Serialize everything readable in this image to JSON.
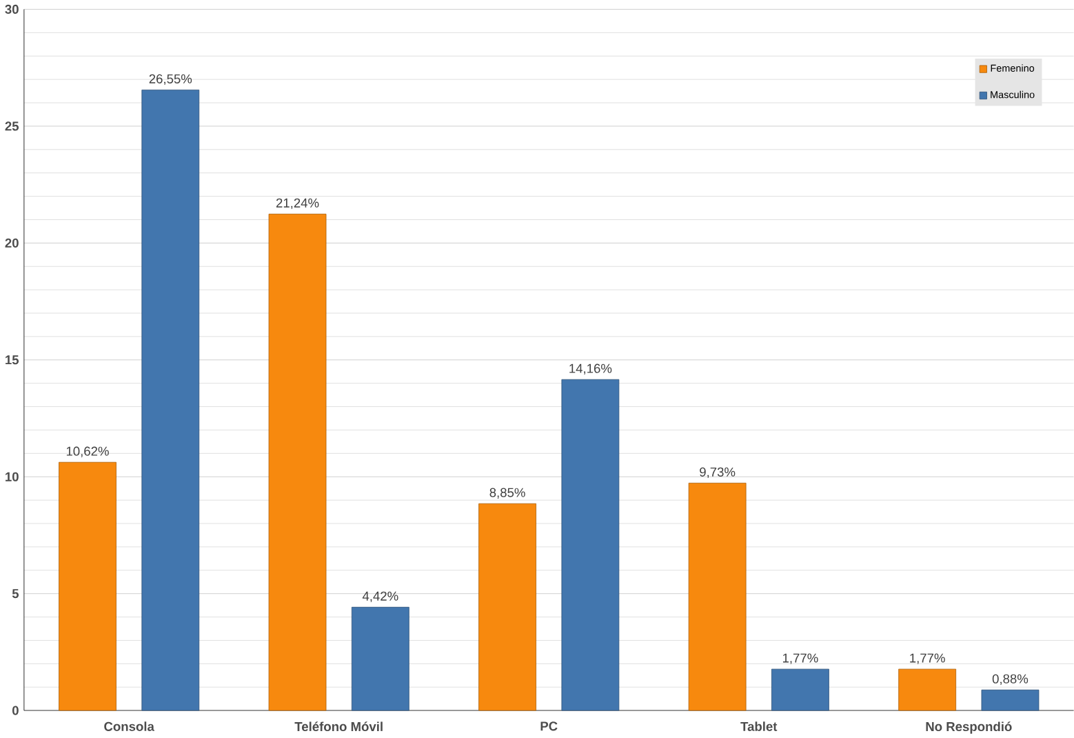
{
  "chart_data": {
    "type": "bar",
    "categories": [
      "Consola",
      "Teléfono Móvil",
      "PC",
      "Tablet",
      "No Respondió"
    ],
    "series": [
      {
        "name": "Femenino",
        "color": "#f7890e",
        "values": [
          10.62,
          21.24,
          8.85,
          9.73,
          1.77
        ],
        "value_labels": [
          "10,62%",
          "21,24%",
          "8,85%",
          "9,73%",
          "1,77%"
        ]
      },
      {
        "name": "Masculino",
        "color": "#4276ae",
        "values": [
          26.55,
          4.42,
          14.16,
          1.77,
          0.88
        ],
        "value_labels": [
          "26,55%",
          "4,42%",
          "14,16%",
          "1,77%",
          "0,88%"
        ]
      }
    ],
    "ylim": [
      0,
      30
    ],
    "yticks": [
      0,
      5,
      10,
      15,
      20,
      25,
      30
    ],
    "grid": "y",
    "legend": "top right"
  }
}
